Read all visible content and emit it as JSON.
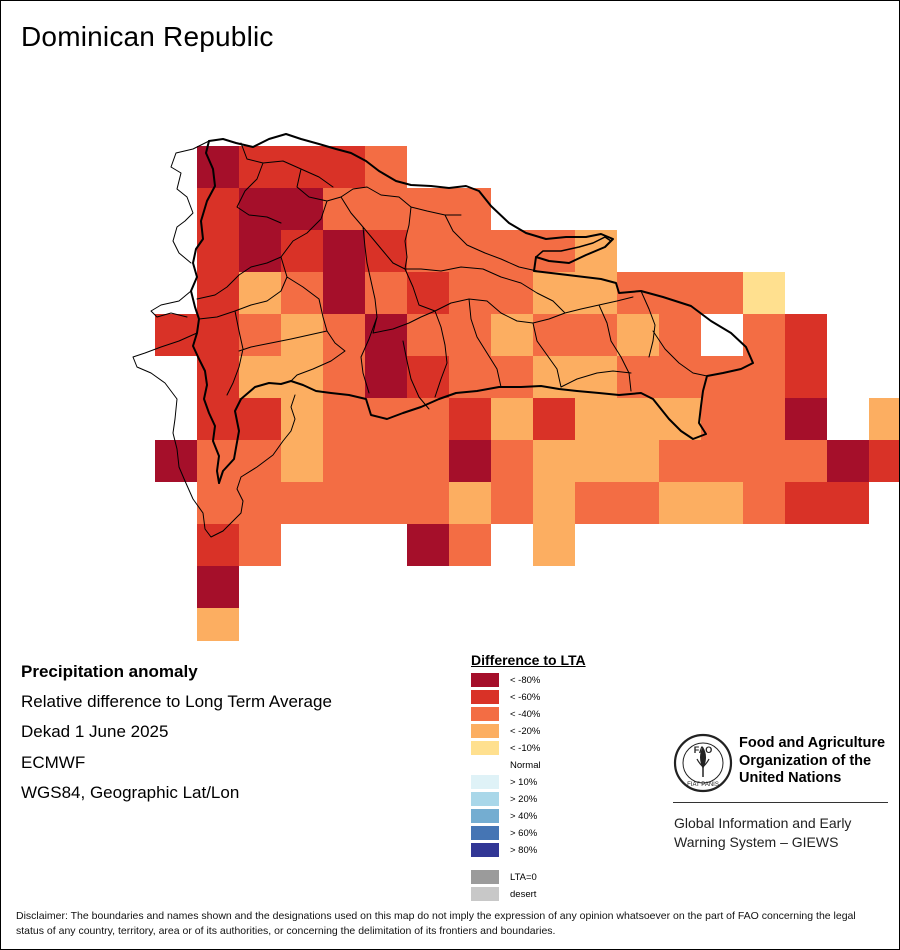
{
  "map": {
    "title": "Dominican Republic",
    "info_lines": [
      "Precipitation anomaly",
      "Relative difference to Long Term Average",
      "Dekad 1 June 2025",
      "ECMWF",
      "WGS84, Geographic Lat/Lon"
    ],
    "legend": {
      "title": "Difference to LTA",
      "items": [
        {
          "label": "< -80%",
          "color": "#a50f2a"
        },
        {
          "label": "< -60%",
          "color": "#d93227"
        },
        {
          "label": "< -40%",
          "color": "#f36d44"
        },
        {
          "label": "< -20%",
          "color": "#fcae61"
        },
        {
          "label": "< -10%",
          "color": "#ffe08f"
        },
        {
          "label": "Normal",
          "color": "#ffffff"
        },
        {
          "label": "> 10%",
          "color": "#dff2f7"
        },
        {
          "label": "> 20%",
          "color": "#a9d7e9"
        },
        {
          "label": "> 40%",
          "color": "#74add1"
        },
        {
          "label": "> 60%",
          "color": "#4575b4"
        },
        {
          "label": "> 80%",
          "color": "#313695"
        }
      ],
      "extra_items": [
        {
          "label": "LTA=0",
          "color": "#9b9b9b"
        },
        {
          "label": "desert",
          "color": "#c8c8c8"
        }
      ]
    },
    "anomaly_grid": {
      "class_order": [
        "< -80%",
        "< -60%",
        "< -40%",
        "< -20%",
        "< -10%"
      ],
      "rows": [
        "..01112.............",
        "..1002222...........",
        "..1010122223........",
        "..13202122332224....",
        ".1123202232232.21...",
        "..133201223322221...",
        "..113222131333220.33",
        ".022322202333222201.",
        "..2222223232233211.2",
        "..12...02.3.........",
        "..0.................",
        "..3................."
      ]
    }
  },
  "org": {
    "logo_text": "FAO",
    "logo_motto": "FIAT PANIS",
    "name_lines": [
      "Food and Agriculture",
      "Organization of the",
      "United Nations"
    ],
    "system_lines": [
      "Global Information and Early",
      "Warning System – GIEWS"
    ]
  },
  "disclaimer": "Disclaimer: The boundaries and names shown and the designations used on this map do not imply the expression of any opinion whatsoever on the part of FAO concerning the legal status of any country, territory, area or of its authorities, or concerning the delimitation of its frontiers and boundaries."
}
